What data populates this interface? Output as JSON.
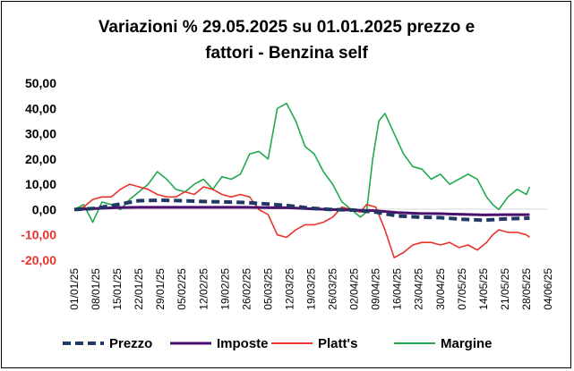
{
  "chart_data": {
    "type": "line",
    "title_line1": "Variazioni % 29.05.2025 su 01.01.2025 prezzo e",
    "title_line2": "fattori - Benzina self",
    "xlabel": "",
    "ylabel": "",
    "ylim": [
      -20,
      50
    ],
    "yticks": [
      "50,00",
      "40,00",
      "30,00",
      "20,00",
      "10,00",
      "0,00",
      "-10,00",
      "-20,00"
    ],
    "ytick_values": [
      50,
      40,
      30,
      20,
      10,
      0,
      -10,
      -20
    ],
    "xticks": [
      "01/01/25",
      "08/01/25",
      "15/01/25",
      "22/01/25",
      "29/01/25",
      "05/02/25",
      "12/02/25",
      "19/02/25",
      "26/02/25",
      "05/03/25",
      "12/03/25",
      "19/03/25",
      "26/03/25",
      "02/04/25",
      "09/04/25",
      "16/04/25",
      "23/04/25",
      "30/04/25",
      "07/05/25",
      "14/05/25",
      "21/05/25",
      "28/05/25",
      "04/06/25"
    ],
    "grid": false,
    "legend_position": "bottom",
    "series": [
      {
        "name": "Prezzo",
        "color": "#1f3864",
        "style": "dashed",
        "x": [
          0,
          7,
          14,
          21,
          28,
          35,
          42,
          49,
          56,
          63,
          70,
          77,
          84,
          91,
          98,
          105,
          112,
          119,
          126,
          133,
          140,
          148
        ],
        "y": [
          0,
          0.5,
          2,
          3.5,
          3.7,
          3.5,
          3.2,
          3.0,
          2.8,
          2.2,
          1.5,
          0.5,
          0,
          -0.2,
          -1.0,
          -2.5,
          -3.0,
          -3.2,
          -3.8,
          -4.2,
          -3.7,
          -3.4
        ]
      },
      {
        "name": "Imposte",
        "color": "#4b0f6e",
        "style": "solid",
        "x": [
          0,
          7,
          14,
          21,
          28,
          35,
          42,
          49,
          56,
          63,
          70,
          77,
          84,
          91,
          98,
          105,
          112,
          119,
          126,
          133,
          140,
          148
        ],
        "y": [
          0,
          0.4,
          0.8,
          0.9,
          0.9,
          0.9,
          0.9,
          0.9,
          0.9,
          0.8,
          0.7,
          0.3,
          0,
          -0.2,
          -0.5,
          -1.2,
          -1.5,
          -1.6,
          -1.9,
          -2.1,
          -2.0,
          -2.0
        ]
      },
      {
        "name": "Platt's",
        "color": "#e8332b",
        "style": "solid",
        "x": [
          0,
          3,
          6,
          9,
          12,
          15,
          18,
          21,
          24,
          27,
          30,
          33,
          36,
          39,
          42,
          45,
          48,
          51,
          54,
          57,
          60,
          63,
          66,
          69,
          72,
          75,
          78,
          81,
          84,
          87,
          90,
          93,
          95,
          98,
          101,
          104,
          107,
          110,
          113,
          116,
          119,
          122,
          125,
          128,
          131,
          134,
          136,
          138,
          141,
          144,
          147,
          148
        ],
        "y": [
          0,
          1,
          4,
          5,
          5,
          8,
          10,
          9,
          8,
          6,
          5,
          5,
          7,
          6,
          9,
          8,
          6,
          5,
          6,
          5,
          0,
          -2,
          -10,
          -11,
          -8,
          -6,
          -6,
          -5,
          -3,
          1,
          0,
          -1,
          2,
          1,
          -8,
          -19,
          -17,
          -14,
          -13,
          -13,
          -14,
          -13,
          -15,
          -14,
          -16,
          -13,
          -10,
          -8,
          -9,
          -9,
          -10,
          -11
        ]
      },
      {
        "name": "Margine",
        "color": "#22a94f",
        "style": "solid",
        "x": [
          0,
          3,
          6,
          9,
          12,
          15,
          18,
          21,
          24,
          27,
          30,
          33,
          36,
          39,
          42,
          45,
          48,
          51,
          54,
          57,
          60,
          63,
          66,
          69,
          72,
          75,
          78,
          81,
          84,
          87,
          90,
          93,
          95,
          97,
          99,
          101,
          104,
          107,
          110,
          113,
          116,
          119,
          122,
          125,
          128,
          131,
          134,
          136,
          138,
          141,
          144,
          147,
          148
        ],
        "y": [
          0,
          2,
          -5,
          3,
          2,
          0,
          4,
          7,
          10,
          15,
          12,
          8,
          7,
          10,
          12,
          8,
          13,
          12,
          14,
          22,
          23,
          20,
          40,
          42,
          35,
          25,
          22,
          15,
          10,
          3,
          0,
          -3,
          -1,
          20,
          35,
          38,
          30,
          22,
          17,
          16,
          12,
          14,
          10,
          12,
          14,
          12,
          5,
          2,
          0,
          5,
          8,
          6,
          9
        ]
      }
    ]
  }
}
